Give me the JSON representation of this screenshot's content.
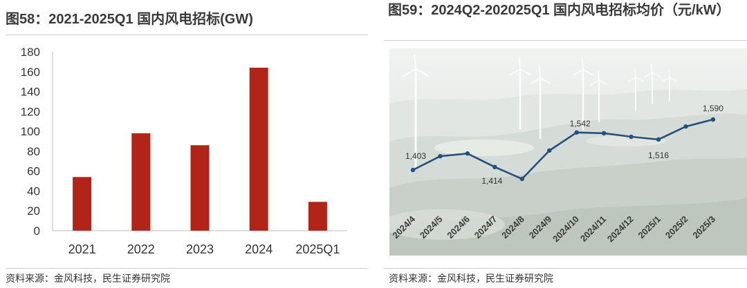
{
  "colors": {
    "bar": "#b32418",
    "line": "#24507e",
    "axis": "#bfbfbf",
    "text": "#333333"
  },
  "sources": {
    "left": "资料来源：金风科技，民生证券研究院",
    "right": "资料来源：金风科技，民生证券研究院"
  },
  "chart_data": [
    {
      "type": "bar",
      "title": "图58：2021-2025Q1 国内风电招标(GW)",
      "categories": [
        "2021",
        "2022",
        "2023",
        "2024",
        "2025Q1"
      ],
      "values": [
        54,
        98,
        86,
        164,
        29
      ],
      "ylim": [
        0,
        180
      ],
      "yticks": [
        0,
        20,
        40,
        60,
        80,
        100,
        120,
        140,
        160,
        180
      ],
      "grid": false,
      "legend": false
    },
    {
      "type": "line",
      "title": "图59：2024Q2-202025Q1  国内风电招标均价（元/kW）",
      "categories": [
        "2024/4",
        "2024/5",
        "2024/6",
        "2024/7",
        "2024/8",
        "2024/9",
        "2024/10",
        "2024/11",
        "2024/12",
        "2025/1",
        "2025/2",
        "2025/3"
      ],
      "values": [
        1403,
        1454,
        1464,
        1414,
        1370,
        1475,
        1542,
        1539,
        1526,
        1516,
        1564,
        1590
      ],
      "data_labels": [
        {
          "index": 0,
          "text": "1,403"
        },
        {
          "index": 3,
          "text": "1,414"
        },
        {
          "index": 6,
          "text": "1,542"
        },
        {
          "index": 9,
          "text": "1,516"
        },
        {
          "index": 11,
          "text": "1,590"
        }
      ],
      "y_axis_shown": false,
      "grid": false,
      "legend": false
    }
  ]
}
